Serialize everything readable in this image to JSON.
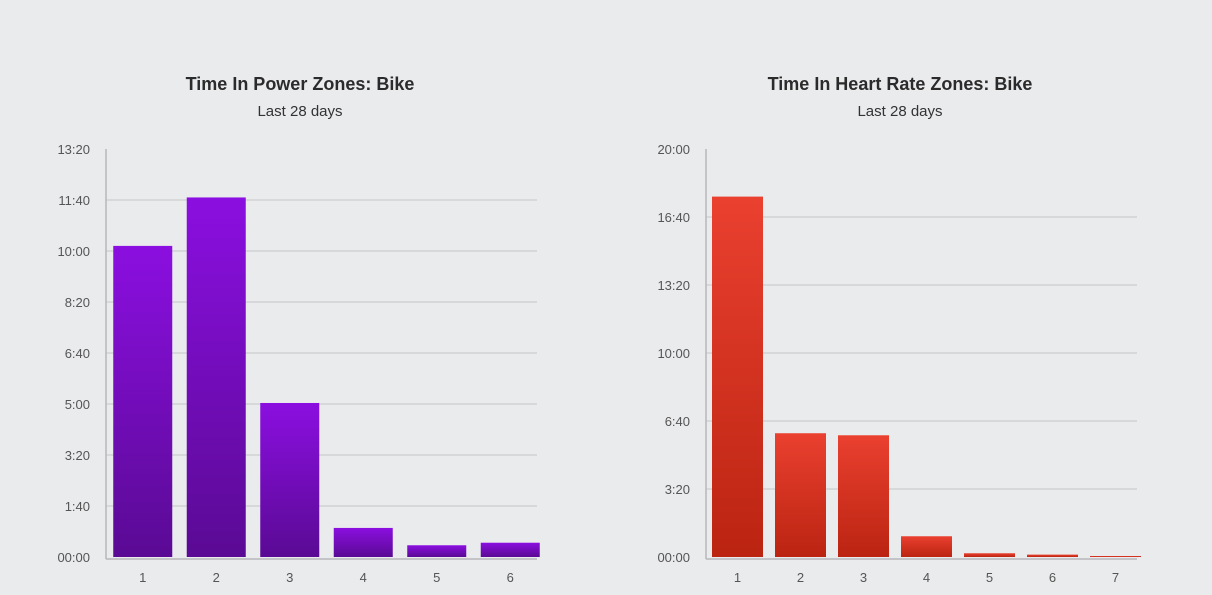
{
  "chart_data": [
    {
      "type": "bar",
      "title": "Time In Power Zones: Bike",
      "subtitle": "Last 28 days",
      "xlabel": "",
      "ylabel": "",
      "categories": [
        "1",
        "2",
        "3",
        "4",
        "5",
        "6"
      ],
      "values": [
        610,
        705,
        302,
        57,
        23,
        28
      ],
      "value_unit": "minutes",
      "ylim": [
        0,
        800
      ],
      "yticks": [
        0,
        100,
        200,
        300,
        400,
        500,
        600,
        700,
        800
      ],
      "ytick_labels": [
        "00:00",
        "1:40",
        "3:20",
        "5:00",
        "6:40",
        "8:20",
        "10:00",
        "11:40",
        "13:20"
      ],
      "grid": true,
      "legend": "none",
      "color_top": "#8b0fe0",
      "color_bottom": "#5a0a94"
    },
    {
      "type": "bar",
      "title": "Time In Heart Rate Zones: Bike",
      "subtitle": "Last 28 days",
      "xlabel": "",
      "ylabel": "",
      "categories": [
        "1",
        "2",
        "3",
        "4",
        "5",
        "6",
        "7"
      ],
      "values": [
        1060,
        364,
        358,
        61,
        11,
        7,
        1
      ],
      "value_unit": "minutes",
      "ylim": [
        0,
        1200
      ],
      "yticks": [
        0,
        200,
        400,
        600,
        800,
        1000,
        1200
      ],
      "ytick_labels": [
        "00:00",
        "3:20",
        "6:40",
        "10:00",
        "13:20",
        "16:40",
        "20:00"
      ],
      "grid": true,
      "legend": "none",
      "color_top": "#ea4030",
      "color_bottom": "#bb2411"
    }
  ]
}
